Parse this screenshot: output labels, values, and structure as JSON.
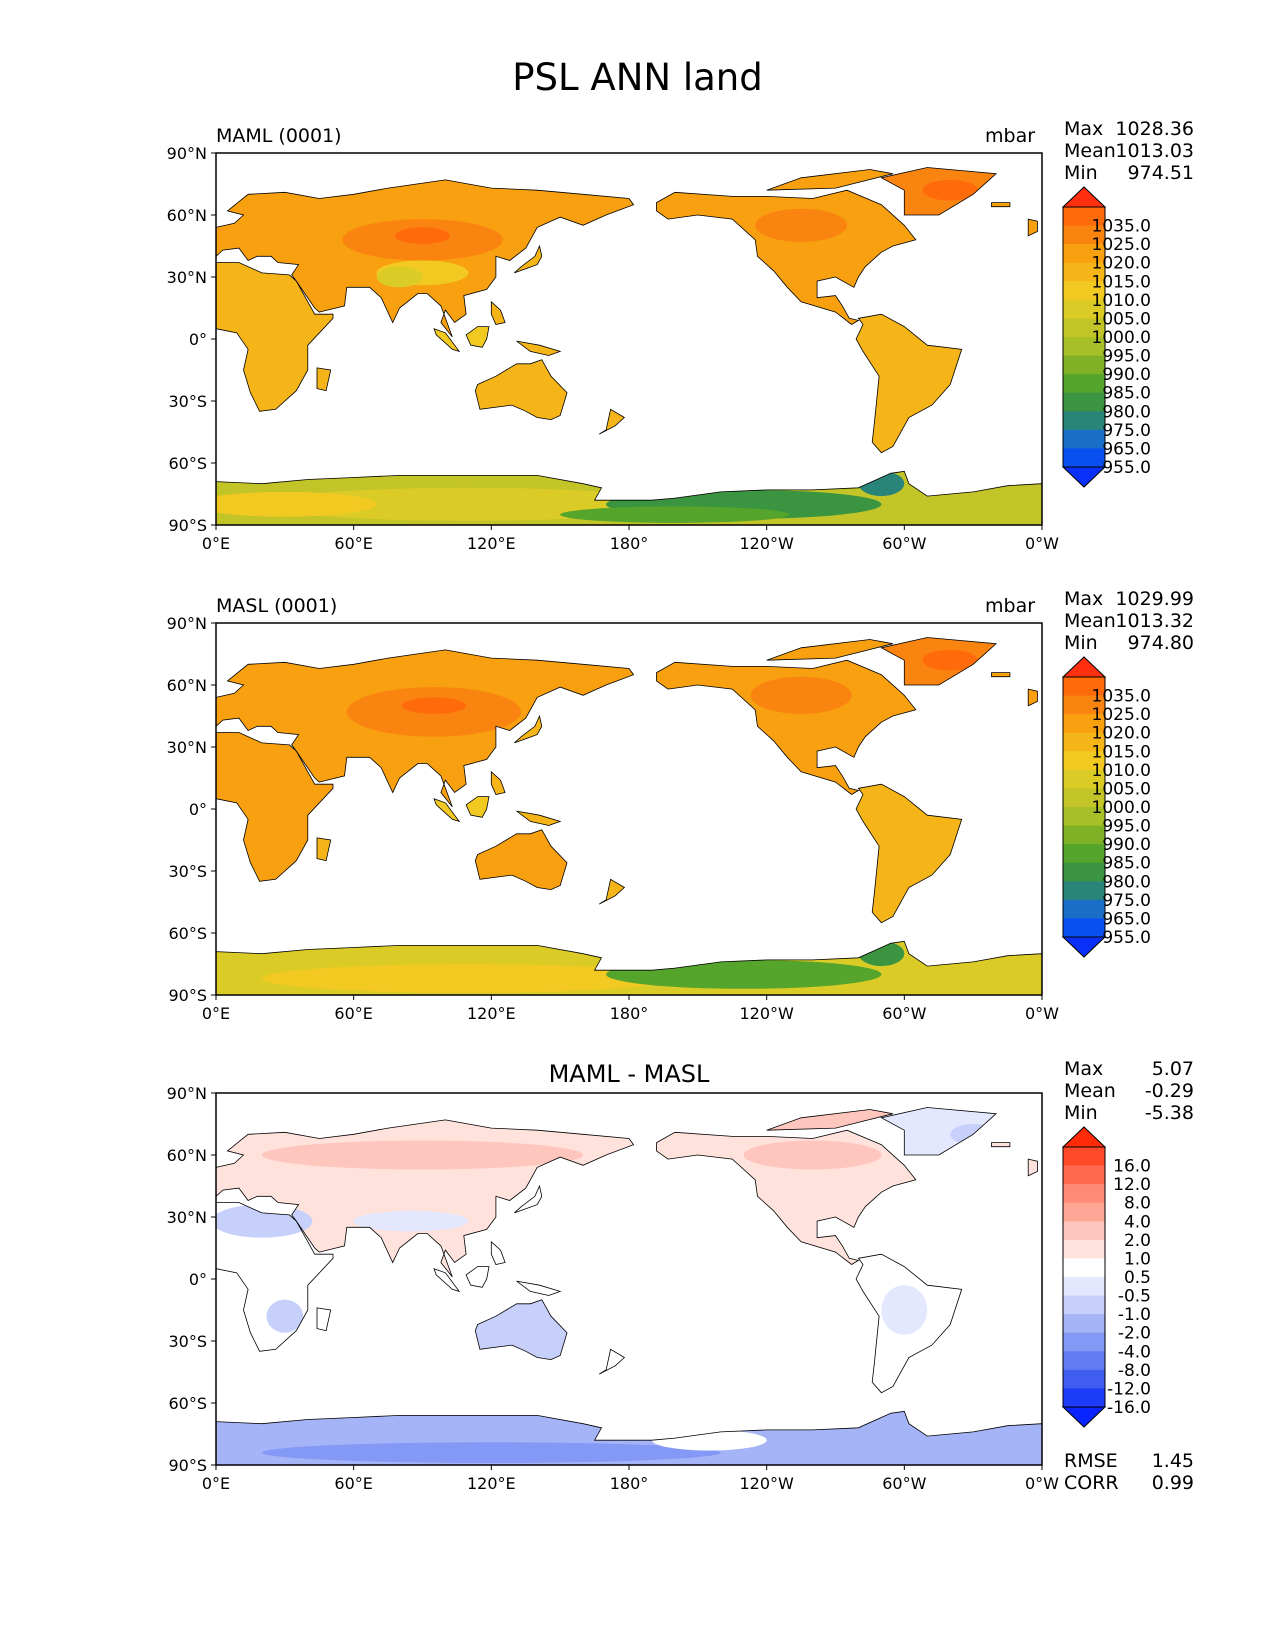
{
  "figure": {
    "title": "PSL ANN land"
  },
  "colormaps": {
    "abs": {
      "levels": [
        "1035.0",
        "1025.0",
        "1020.0",
        "1015.0",
        "1010.0",
        "1005.0",
        "1000.0",
        "995.0",
        "990.0",
        "985.0",
        "980.0",
        "975.0",
        "965.0",
        "955.0"
      ],
      "colors": [
        "#ff3010",
        "#ff6a0a",
        "#fa8410",
        "#f8a010",
        "#f5b518",
        "#f2c921",
        "#dbcb26",
        "#c2c428",
        "#a8c027",
        "#7fb126",
        "#55a42b",
        "#3a9440",
        "#29857a",
        "#1a6ec8",
        "#0a50f0",
        "#0a2ff8"
      ]
    },
    "diff": {
      "levels": [
        "16.0",
        "12.0",
        "8.0",
        "4.0",
        "2.0",
        "1.0",
        "0.5",
        "-0.5",
        "-1.0",
        "-2.0",
        "-4.0",
        "-8.0",
        "-12.0",
        "-16.0"
      ],
      "colors": [
        "#ff2a08",
        "#ff4a2a",
        "#ff6a4f",
        "#ff8b76",
        "#ffa797",
        "#ffc6bd",
        "#ffe2dc",
        "#ffffff",
        "#e3e8ff",
        "#c6d0fb",
        "#a5b4f7",
        "#8498f5",
        "#627bf3",
        "#3f5df1",
        "#1c3cf8",
        "#0a24ff"
      ]
    }
  },
  "map_axes": {
    "xticks": [
      "0°E",
      "60°E",
      "120°E",
      "180°",
      "120°W",
      "60°W",
      "0°W"
    ],
    "yticks": [
      "90°N",
      "60°N",
      "30°N",
      "0°",
      "30°S",
      "60°S",
      "90°S"
    ]
  },
  "panels": [
    {
      "left_label": "MAML (0001)",
      "unit": "mbar",
      "center_label": "",
      "colormap": "abs",
      "scheme": "abs1",
      "stats": [
        {
          "k": "Max",
          "v": "1028.36"
        },
        {
          "k": "Mean",
          "v": "1013.03"
        },
        {
          "k": "Min",
          "v": "974.51"
        }
      ],
      "extra_stats": []
    },
    {
      "left_label": "MASL (0001)",
      "unit": "mbar",
      "center_label": "",
      "colormap": "abs",
      "scheme": "abs2",
      "stats": [
        {
          "k": "Max",
          "v": "1029.99"
        },
        {
          "k": "Mean",
          "v": "1013.32"
        },
        {
          "k": "Min",
          "v": "974.80"
        }
      ],
      "extra_stats": []
    },
    {
      "left_label": "",
      "unit": "",
      "center_label": "MAML - MASL",
      "colormap": "diff",
      "scheme": "diff",
      "stats": [
        {
          "k": "Max",
          "v": "5.07"
        },
        {
          "k": "Mean",
          "v": "-0.29"
        },
        {
          "k": "Min",
          "v": "-5.38"
        }
      ],
      "extra_stats": [
        {
          "k": "RMSE",
          "v": "1.45"
        },
        {
          "k": "CORR",
          "v": "0.99"
        }
      ]
    }
  ]
}
